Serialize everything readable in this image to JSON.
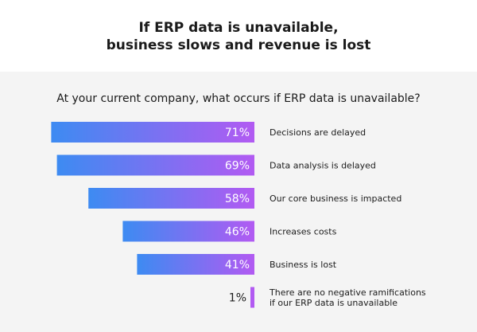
{
  "header": {
    "title_line1": "If ERP data is unavailable,",
    "title_line2": "business slows and revenue is lost"
  },
  "question": "At your current company, what occurs if ERP data is unavailable?",
  "colors": {
    "gradient_start": "#3d8bf2",
    "gradient_end": "#b25af2",
    "label_text": "#1c1c1c",
    "panel_bg": "#f4f4f4"
  },
  "chart_data": {
    "type": "bar",
    "orientation": "horizontal",
    "categories": [
      "Decisions are delayed",
      "Data analysis is delayed",
      "Our core business is impacted",
      "Increases costs",
      "Business is lost",
      "There are no negative ramifications if our ERP data is unavailable"
    ],
    "category_lines": [
      [
        "Decisions are delayed"
      ],
      [
        "Data analysis is delayed"
      ],
      [
        "Our core business is impacted"
      ],
      [
        "Increases costs"
      ],
      [
        "Business is lost"
      ],
      [
        "There are no negative ramifications",
        "if our ERP data is unavailable"
      ]
    ],
    "values": [
      71,
      69,
      58,
      46,
      41,
      1
    ],
    "value_labels": [
      "71%",
      "69%",
      "58%",
      "46%",
      "41%",
      "1%"
    ],
    "xlim": [
      0,
      100
    ],
    "grid": false,
    "legend": "none"
  }
}
